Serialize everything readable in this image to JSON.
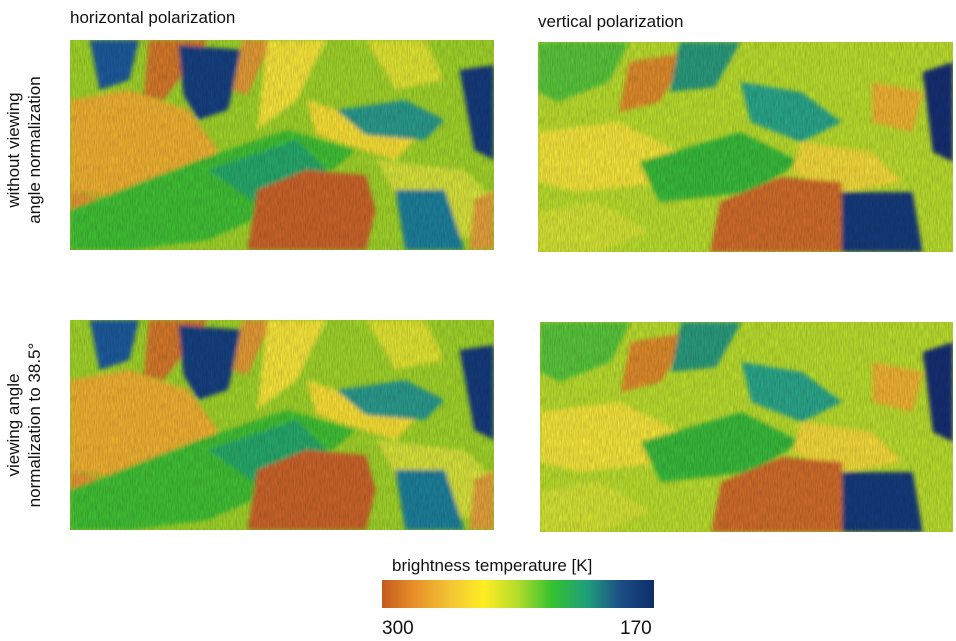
{
  "columns": {
    "left_title": "horizontal polarization",
    "right_title": "vertical polarization"
  },
  "rows": {
    "top_label_line1": "without viewing",
    "top_label_line2": "angle normalization",
    "bottom_label_line1": "viewing angle",
    "bottom_label_line2": "normalization to 38.5°"
  },
  "legend": {
    "title": "brightness temperature [K]",
    "min_label": "300",
    "max_label": "170",
    "colors": [
      "#c65a1e",
      "#e8922a",
      "#f3c434",
      "#ffee22",
      "#b2dc2a",
      "#34c22e",
      "#1fa07a",
      "#1c4f86",
      "#0e2d6a"
    ]
  }
}
